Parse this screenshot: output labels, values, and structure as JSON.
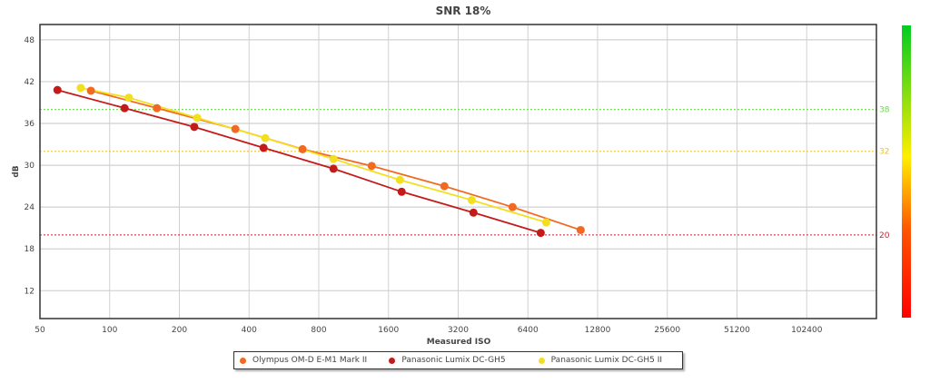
{
  "chart_data": {
    "type": "line",
    "title": "SNR 18%",
    "xlabel": "Measured ISO",
    "ylabel": "dB",
    "x_scale": "log2",
    "xlim": [
      50,
      204800
    ],
    "ylim": [
      8,
      50.2
    ],
    "x_ticks": [
      50,
      100,
      200,
      400,
      800,
      1600,
      3200,
      6400,
      12800,
      25600,
      51200,
      102400
    ],
    "y_ticks": [
      12,
      18,
      24,
      30,
      36,
      42,
      48
    ],
    "grid": true,
    "legend_position": "bottom",
    "thresholds": [
      {
        "value": 38,
        "label": "38",
        "color": "#66dd44"
      },
      {
        "value": 32,
        "label": "32",
        "color": "#f0c020"
      },
      {
        "value": 20,
        "label": "20",
        "color": "#cc2233"
      }
    ],
    "color_scale": {
      "bottom": "#ff0000",
      "middle": "#ffff00",
      "top": "#00cc22"
    },
    "series": [
      {
        "name": "Olympus OM-D E-M1 Mark II",
        "color": "#f26a21",
        "x": [
          83,
          160,
          349,
          681,
          1354,
          2790,
          5495,
          10820
        ],
        "y": [
          40.7,
          38.2,
          35.2,
          32.3,
          29.9,
          27.0,
          24.0,
          20.7
        ]
      },
      {
        "name": "Panasonic Lumix DC-GH5",
        "color": "#c41a1a",
        "x": [
          59.5,
          116,
          232,
          462,
          926,
          1824,
          3725,
          7270
        ],
        "y": [
          40.8,
          38.2,
          35.5,
          32.5,
          29.5,
          26.2,
          23.2,
          20.3
        ]
      },
      {
        "name": "Panasonic Lumix DC-GH5 II",
        "color": "#f2e020",
        "x": [
          75,
          121,
          239,
          470,
          926,
          1792,
          3659,
          7676
        ],
        "y": [
          41.1,
          39.7,
          36.8,
          33.9,
          30.9,
          27.9,
          25.0,
          21.8
        ]
      }
    ]
  }
}
